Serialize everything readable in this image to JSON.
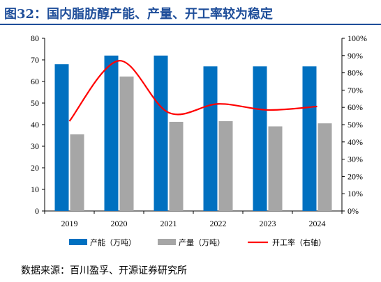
{
  "header": {
    "title": "图32：国内脂肪醇产能、产量、开工率较为稳定"
  },
  "footer": {
    "source": "数据来源：百川盈孚、开源证券研究所"
  },
  "colors": {
    "capacity": "#0070c0",
    "output": "#a6a6a6",
    "rate": "#ff0000",
    "title": "#1f4e9a"
  },
  "chart_data": {
    "type": "bar",
    "categories": [
      "2019",
      "2020",
      "2021",
      "2022",
      "2023",
      "2024"
    ],
    "series": [
      {
        "name": "产能（万吨）",
        "type": "bar",
        "axis": "left",
        "values": [
          68,
          72,
          72,
          67,
          67,
          67
        ]
      },
      {
        "name": "产量（万吨）",
        "type": "bar",
        "axis": "left",
        "values": [
          35.5,
          62.3,
          41.3,
          41.6,
          39.2,
          40.6
        ]
      },
      {
        "name": "开工率（右轴）",
        "type": "line",
        "axis": "right",
        "smooth": true,
        "values": [
          52,
          87,
          57,
          62,
          58.5,
          60.5
        ]
      }
    ],
    "yleft": {
      "lim": [
        0,
        80
      ],
      "ticks": [
        "0",
        "10",
        "20",
        "30",
        "40",
        "50",
        "60",
        "70",
        "80"
      ]
    },
    "yright": {
      "lim": [
        0,
        100
      ],
      "ticks": [
        "0%",
        "10%",
        "20%",
        "30%",
        "40%",
        "50%",
        "60%",
        "70%",
        "80%",
        "90%",
        "100%"
      ]
    },
    "grid": false,
    "legend": "bottom"
  }
}
